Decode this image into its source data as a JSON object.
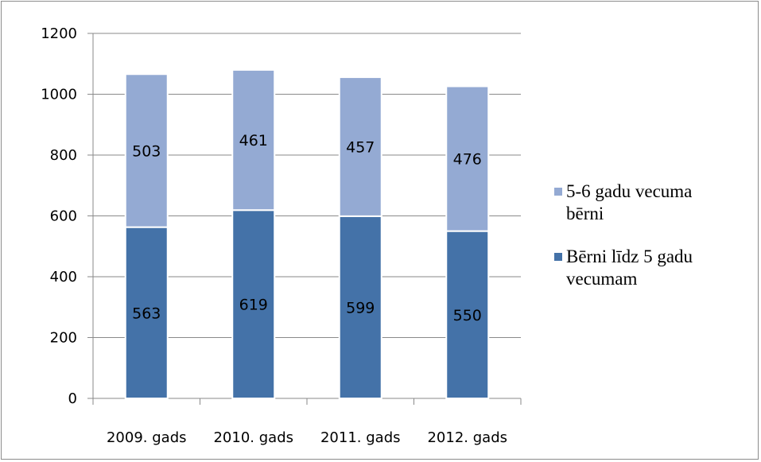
{
  "chart_data": {
    "type": "bar",
    "stacked": true,
    "categories": [
      "2009. gads",
      "2010. gads",
      "2011. gads",
      "2012. gads"
    ],
    "series": [
      {
        "name": "Bērni līdz 5 gadu vecumam",
        "values": [
          563,
          619,
          599,
          550
        ],
        "color": "#4472a8"
      },
      {
        "name": "5-6 gadu vecuma bērni",
        "values": [
          503,
          461,
          457,
          476
        ],
        "color": "#94aad3"
      }
    ],
    "legend": [
      {
        "series": 1,
        "lines": [
          "5-6 gadu vecuma",
          "bērni"
        ]
      },
      {
        "series": 0,
        "lines": [
          "Bērni līdz 5 gadu",
          "vecumam"
        ]
      }
    ],
    "yticks": [
      "0",
      "200",
      "400",
      "600",
      "800",
      "1000",
      "1200"
    ],
    "ylim": [
      0,
      1200
    ],
    "grid": true,
    "legend_position": "right",
    "data_labels": true
  }
}
